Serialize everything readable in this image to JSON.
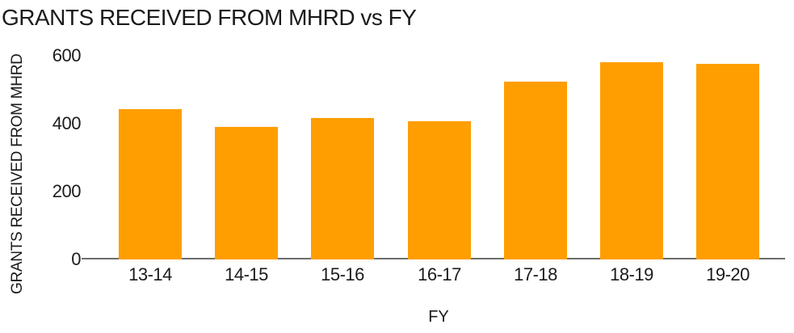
{
  "chart_data": {
    "type": "bar",
    "title": "GRANTS RECEIVED FROM MHRD vs FY",
    "xlabel": "FY",
    "ylabel": "GRANTS RECEIVED FROM MHRD",
    "categories": [
      "13-14",
      "14-15",
      "15-16",
      "16-17",
      "17-18",
      "18-19",
      "19-20"
    ],
    "values": [
      443,
      390,
      417,
      406,
      524,
      580,
      577
    ],
    "ylim": [
      0,
      600
    ],
    "yticks": [
      0,
      200,
      400,
      600
    ],
    "grid": "off",
    "legend": "none",
    "bar_color": "#FF9E00",
    "axis_line_color": "#6E6E6E",
    "text_color": "#1B1B1B",
    "background_color": "#FFFFFF"
  }
}
